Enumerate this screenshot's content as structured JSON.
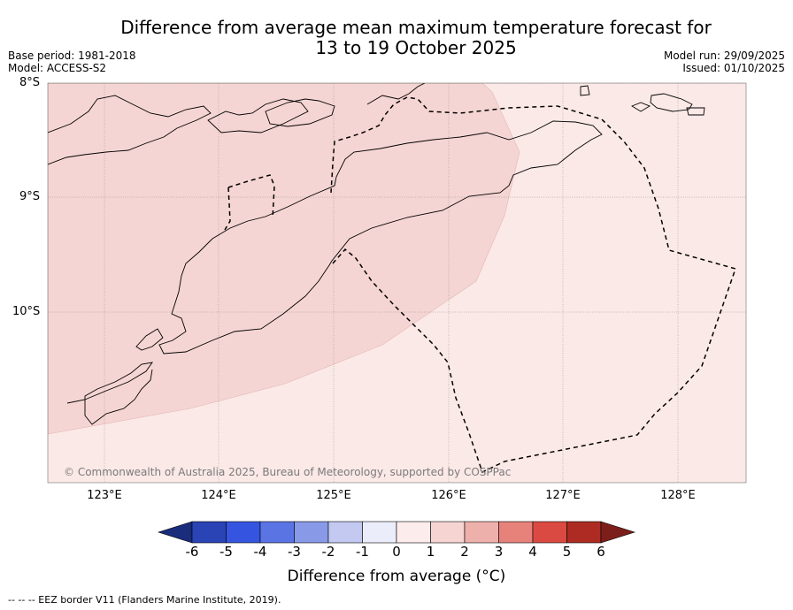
{
  "title": {
    "line1": "Difference from average mean maximum temperature forecast for",
    "line2": "13 to 19 October 2025"
  },
  "meta": {
    "base_period": "Base period: 1981-2018",
    "model": "Model: ACCESS-S2",
    "model_run": "Model run: 29/09/2025",
    "issued": "Issued: 01/10/2025"
  },
  "map": {
    "latitude_labels": [
      "8°S",
      "9°S",
      "10°S"
    ],
    "longitude_labels": [
      "123°E",
      "124°E",
      "125°E",
      "126°E",
      "127°E",
      "128°E"
    ],
    "copyright": "© Commonwealth of Australia 2025, Bureau of Meteorology, supported by COSPPac",
    "colors": {
      "band_0_to_1": "#fbe9e7",
      "band_1_to_2": "#f5d5d3",
      "land_outline": "#000000"
    }
  },
  "colorbar": {
    "ticks": [
      "-6",
      "-5",
      "-4",
      "-3",
      "-2",
      "-1",
      "0",
      "1",
      "2",
      "3",
      "4",
      "5",
      "6"
    ],
    "colors": [
      "#1a2c7c",
      "#2a43b5",
      "#3555e0",
      "#5a74e4",
      "#8899e8",
      "#c3c9f1",
      "#ecedfb",
      "#fdecec",
      "#f6d4d2",
      "#eeb0ab",
      "#e7827b",
      "#db4a42",
      "#ad2b22",
      "#7c1f1b"
    ],
    "label": "Difference from average (°C)"
  },
  "footnote": "--  --  -- EEZ border V11 (Flanders Marine Institute, 2019)."
}
